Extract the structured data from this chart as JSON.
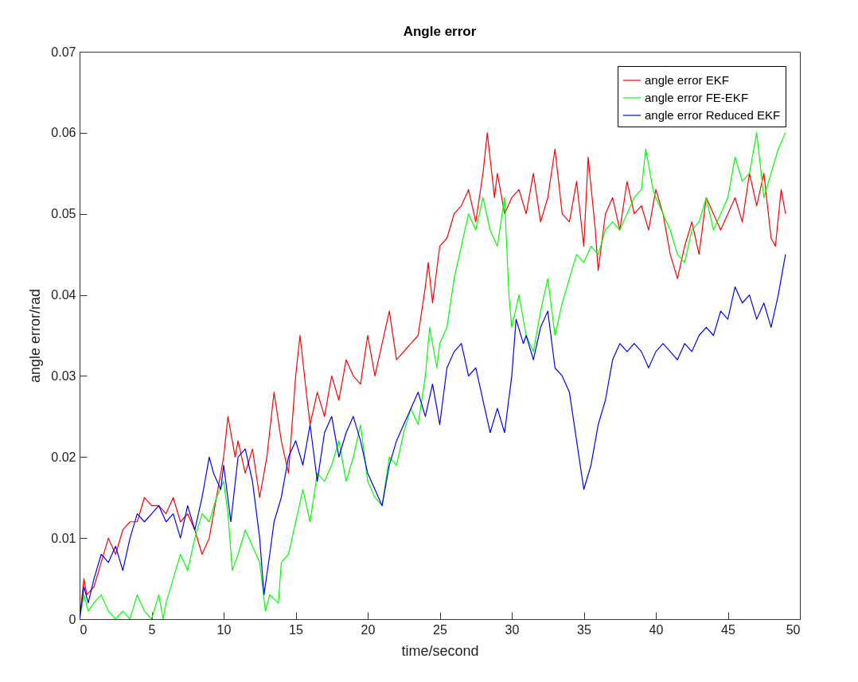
{
  "chart_data": {
    "type": "line",
    "title": "Angle error",
    "xlabel": "time/second",
    "ylabel": "angle error/rad",
    "xlim": [
      0,
      50
    ],
    "ylim": [
      0,
      0.07
    ],
    "xticks": [
      0,
      5,
      10,
      15,
      20,
      25,
      30,
      35,
      40,
      45,
      50
    ],
    "yticks": [
      0,
      0.01,
      0.02,
      0.03,
      0.04,
      0.05,
      0.06,
      0.07
    ],
    "grid": false,
    "legend": "top right",
    "marker": "none",
    "line_style": "solid",
    "series": [
      {
        "name": "angle error EKF",
        "color": "#ff0000",
        "x": [
          0,
          0.3,
          0.5,
          1,
          1.5,
          2,
          2.5,
          3,
          3.5,
          4,
          4.5,
          5,
          5.5,
          6,
          6.5,
          7,
          7.5,
          8,
          8.5,
          9,
          9.5,
          10,
          10.3,
          10.8,
          11,
          11.5,
          12,
          12.5,
          13,
          13.5,
          14,
          14.5,
          15,
          15.3,
          15.8,
          16,
          16.5,
          17,
          17.5,
          18,
          18.5,
          19,
          19.5,
          20,
          20.5,
          21,
          21.5,
          22,
          22.5,
          23,
          23.5,
          24,
          24.2,
          24.5,
          25,
          25.5,
          26,
          26.5,
          27,
          27.5,
          28,
          28.3,
          28.8,
          29,
          29.5,
          30,
          30.5,
          31,
          31.5,
          32,
          32.5,
          33,
          33.5,
          34,
          34.5,
          35,
          35.3,
          35.8,
          36,
          36.5,
          37,
          37.5,
          38,
          38.5,
          39,
          39.5,
          40,
          40.5,
          41,
          41.5,
          42,
          42.5,
          43,
          43.5,
          44,
          44.5,
          45,
          45.5,
          46,
          46.5,
          47,
          47.5,
          48,
          48.3,
          48.7,
          49
        ],
        "values": [
          0,
          0.005,
          0.003,
          0.004,
          0.007,
          0.01,
          0.008,
          0.011,
          0.012,
          0.012,
          0.015,
          0.014,
          0.014,
          0.013,
          0.015,
          0.012,
          0.013,
          0.011,
          0.008,
          0.01,
          0.015,
          0.02,
          0.025,
          0.02,
          0.022,
          0.018,
          0.021,
          0.015,
          0.02,
          0.028,
          0.022,
          0.018,
          0.03,
          0.035,
          0.027,
          0.024,
          0.028,
          0.025,
          0.03,
          0.027,
          0.032,
          0.03,
          0.029,
          0.035,
          0.03,
          0.034,
          0.038,
          0.032,
          0.033,
          0.034,
          0.035,
          0.041,
          0.044,
          0.039,
          0.046,
          0.047,
          0.05,
          0.051,
          0.053,
          0.049,
          0.055,
          0.06,
          0.052,
          0.055,
          0.05,
          0.052,
          0.053,
          0.05,
          0.055,
          0.049,
          0.052,
          0.058,
          0.05,
          0.049,
          0.054,
          0.046,
          0.057,
          0.048,
          0.043,
          0.05,
          0.052,
          0.048,
          0.054,
          0.05,
          0.051,
          0.048,
          0.053,
          0.05,
          0.045,
          0.042,
          0.046,
          0.049,
          0.045,
          0.052,
          0.05,
          0.048,
          0.05,
          0.052,
          0.049,
          0.055,
          0.051,
          0.055,
          0.047,
          0.046,
          0.053,
          0.05
        ]
      },
      {
        "name": "angle error FE-EKF",
        "color": "#00ff00",
        "x": [
          0,
          0.3,
          0.6,
          1,
          1.5,
          2,
          2.5,
          3,
          3.5,
          4,
          4.5,
          5,
          5.5,
          5.8,
          6,
          6.5,
          7,
          7.5,
          8,
          8.5,
          9,
          9.5,
          10,
          10.3,
          10.6,
          11,
          11.5,
          12,
          12.5,
          12.9,
          13.2,
          13.8,
          14,
          14.5,
          15,
          15.5,
          16,
          16.5,
          17,
          17.5,
          18,
          18.5,
          19,
          19.5,
          20,
          20.5,
          21,
          21.5,
          22,
          22.5,
          23,
          23.5,
          24,
          24.3,
          24.8,
          25,
          25.5,
          26,
          26.5,
          27,
          27.5,
          28,
          28.5,
          29,
          29.5,
          29.8,
          30,
          30.5,
          31,
          31.5,
          32,
          32.5,
          33,
          33.5,
          34,
          34.5,
          35,
          35.5,
          36,
          36.5,
          37,
          37.5,
          38,
          38.5,
          39,
          39.3,
          39.8,
          40,
          40.5,
          41,
          41.5,
          42,
          42.5,
          43,
          43.5,
          44,
          44.5,
          45,
          45.5,
          46,
          46.5,
          47,
          47.5,
          48,
          48.5,
          49
        ],
        "values": [
          0,
          0.003,
          0.001,
          0.002,
          0.003,
          0.001,
          0,
          0.001,
          0,
          0.003,
          0.001,
          0,
          0.003,
          0,
          0.002,
          0.005,
          0.008,
          0.006,
          0.01,
          0.013,
          0.012,
          0.015,
          0.017,
          0.013,
          0.006,
          0.008,
          0.011,
          0.009,
          0.007,
          0.001,
          0.003,
          0.002,
          0.007,
          0.008,
          0.012,
          0.016,
          0.012,
          0.018,
          0.017,
          0.019,
          0.022,
          0.017,
          0.02,
          0.024,
          0.017,
          0.015,
          0.014,
          0.02,
          0.019,
          0.023,
          0.026,
          0.024,
          0.03,
          0.036,
          0.031,
          0.034,
          0.036,
          0.042,
          0.046,
          0.05,
          0.048,
          0.052,
          0.048,
          0.046,
          0.052,
          0.04,
          0.036,
          0.04,
          0.035,
          0.033,
          0.038,
          0.042,
          0.035,
          0.039,
          0.042,
          0.045,
          0.044,
          0.046,
          0.045,
          0.048,
          0.049,
          0.048,
          0.05,
          0.052,
          0.053,
          0.058,
          0.053,
          0.052,
          0.05,
          0.048,
          0.045,
          0.044,
          0.048,
          0.049,
          0.052,
          0.048,
          0.05,
          0.052,
          0.057,
          0.054,
          0.055,
          0.06,
          0.052,
          0.055,
          0.058,
          0.06
        ]
      },
      {
        "name": "angle error Reduced EKF",
        "color": "#0000ff",
        "x": [
          0,
          0.3,
          0.6,
          1,
          1.5,
          2,
          2.5,
          3,
          3.5,
          4,
          4.5,
          5,
          5.5,
          6,
          6.5,
          7,
          7.5,
          8,
          8.5,
          9,
          9.3,
          9.8,
          10,
          10.5,
          11,
          11.5,
          12,
          12.5,
          12.8,
          13.2,
          13.5,
          14,
          14.5,
          15,
          15.5,
          16,
          16.5,
          17,
          17.5,
          18,
          18.5,
          19,
          19.5,
          20,
          20.5,
          21,
          21.5,
          22,
          22.5,
          23,
          23.5,
          24,
          24.5,
          25,
          25.5,
          26,
          26.5,
          27,
          27.5,
          28,
          28.5,
          29,
          29.5,
          30,
          30.3,
          30.8,
          31,
          31.5,
          32,
          32.5,
          33,
          33.5,
          34,
          34.5,
          35,
          35.5,
          36,
          36.5,
          37,
          37.5,
          38,
          38.5,
          39,
          39.5,
          40,
          40.5,
          41,
          41.5,
          42,
          42.5,
          43,
          43.5,
          44,
          44.5,
          45,
          45.5,
          46,
          46.5,
          47,
          47.5,
          48,
          48.5,
          49
        ],
        "values": [
          0,
          0.004,
          0.002,
          0.005,
          0.008,
          0.007,
          0.009,
          0.006,
          0.01,
          0.013,
          0.012,
          0.013,
          0.014,
          0.012,
          0.013,
          0.01,
          0.014,
          0.011,
          0.015,
          0.02,
          0.018,
          0.016,
          0.019,
          0.012,
          0.02,
          0.021,
          0.017,
          0.01,
          0.003,
          0.008,
          0.012,
          0.015,
          0.02,
          0.022,
          0.019,
          0.024,
          0.017,
          0.023,
          0.025,
          0.02,
          0.023,
          0.025,
          0.022,
          0.018,
          0.016,
          0.014,
          0.019,
          0.022,
          0.024,
          0.026,
          0.028,
          0.025,
          0.029,
          0.024,
          0.031,
          0.033,
          0.034,
          0.03,
          0.031,
          0.027,
          0.023,
          0.026,
          0.023,
          0.03,
          0.037,
          0.034,
          0.035,
          0.032,
          0.036,
          0.038,
          0.031,
          0.03,
          0.028,
          0.022,
          0.016,
          0.019,
          0.024,
          0.027,
          0.032,
          0.034,
          0.033,
          0.034,
          0.033,
          0.031,
          0.033,
          0.034,
          0.033,
          0.032,
          0.034,
          0.033,
          0.035,
          0.036,
          0.035,
          0.038,
          0.037,
          0.041,
          0.039,
          0.04,
          0.037,
          0.039,
          0.036,
          0.04,
          0.045
        ]
      }
    ]
  }
}
